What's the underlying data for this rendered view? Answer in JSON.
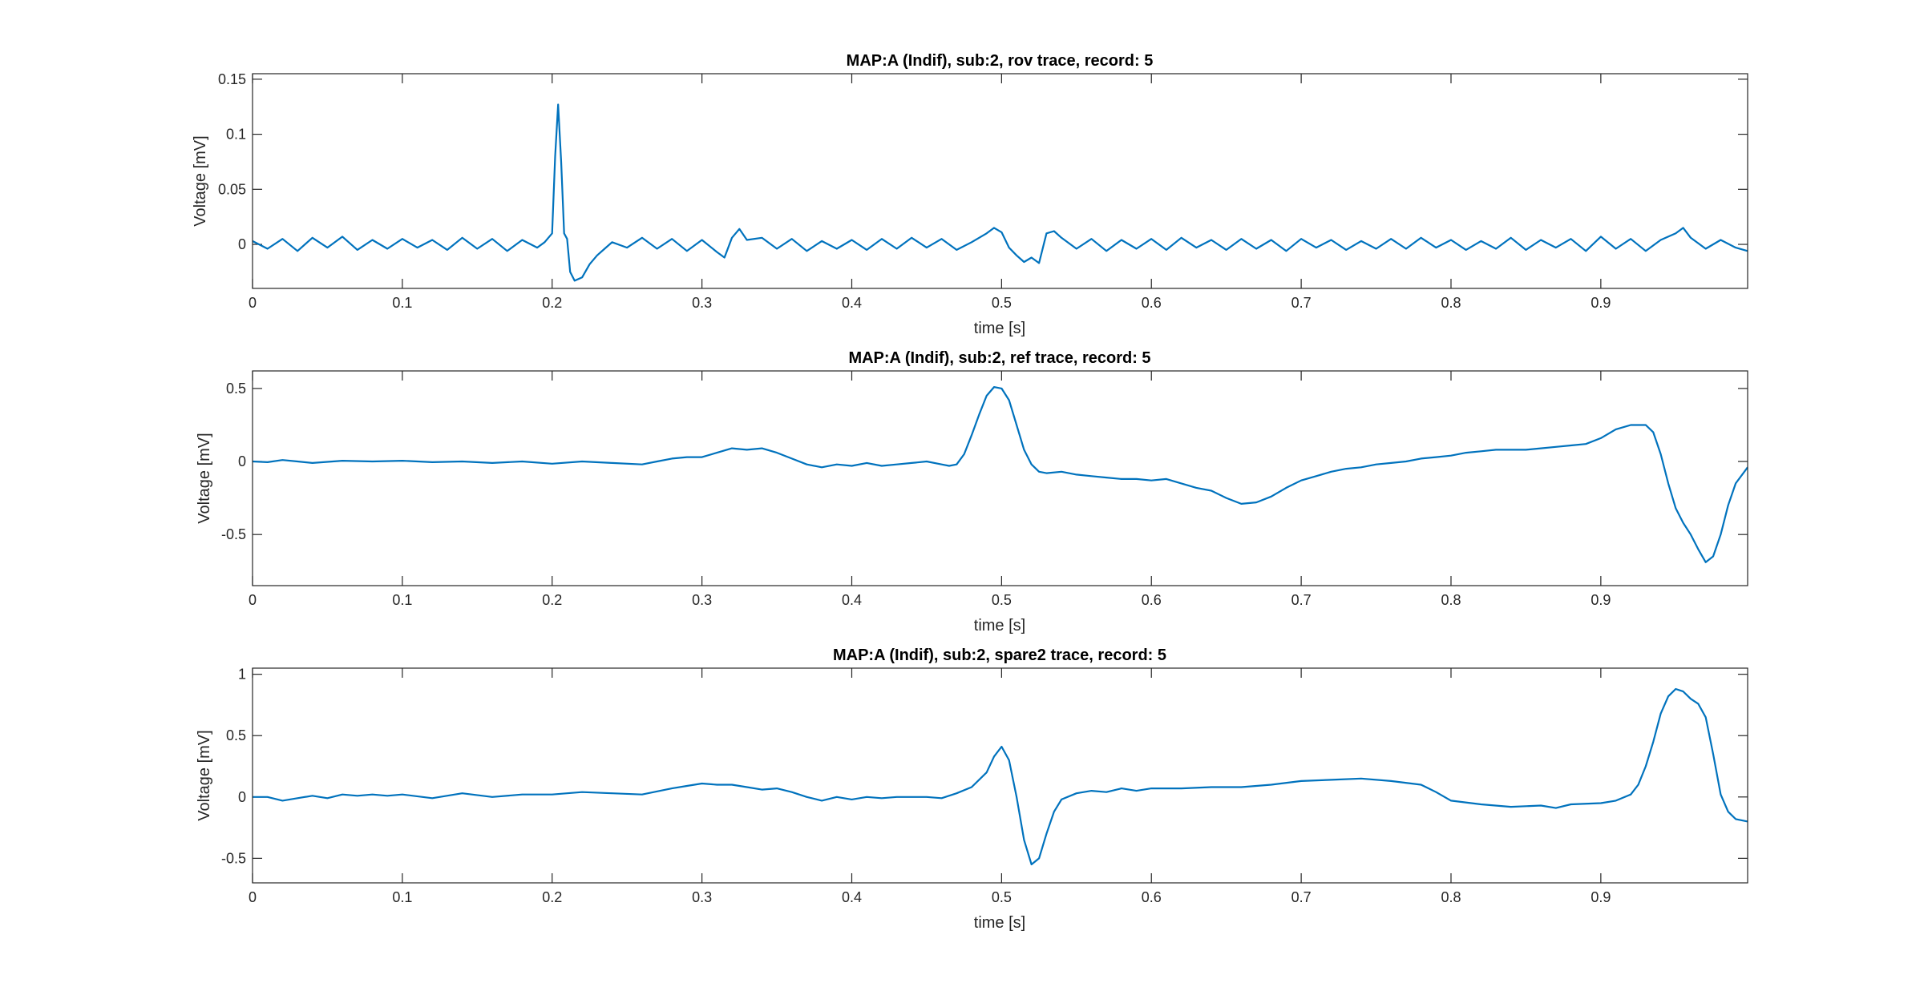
{
  "figure": {
    "background": "#ffffff",
    "axis_color": "#262626",
    "line_color": "#0072BD"
  },
  "chart_data": [
    {
      "type": "line",
      "title": "MAP:A (Indif), sub:2, rov trace, record: 5",
      "xlabel": "time [s]",
      "ylabel": "Voltage [mV]",
      "xlim": [
        0,
        0.998
      ],
      "ylim": [
        -0.04,
        0.155
      ],
      "xticks": [
        0,
        0.1,
        0.2,
        0.3,
        0.4,
        0.5,
        0.6,
        0.7,
        0.8,
        0.9
      ],
      "xtick_labels": [
        "0",
        "0.1",
        "0.2",
        "0.3",
        "0.4",
        "0.5",
        "0.6",
        "0.7",
        "0.8",
        "0.9"
      ],
      "yticks": [
        0,
        0.05,
        0.1,
        0.15
      ],
      "ytick_labels": [
        "0",
        "0.05",
        "0.1",
        "0.15"
      ],
      "grid": false,
      "series": [
        {
          "color": "#0072BD",
          "x": [
            0,
            0.01,
            0.02,
            0.03,
            0.04,
            0.05,
            0.06,
            0.07,
            0.08,
            0.09,
            0.1,
            0.11,
            0.12,
            0.13,
            0.14,
            0.15,
            0.16,
            0.17,
            0.18,
            0.19,
            0.195,
            0.2,
            0.202,
            0.204,
            0.206,
            0.208,
            0.21,
            0.212,
            0.215,
            0.22,
            0.225,
            0.23,
            0.235,
            0.24,
            0.25,
            0.26,
            0.27,
            0.28,
            0.29,
            0.3,
            0.31,
            0.315,
            0.32,
            0.325,
            0.33,
            0.34,
            0.35,
            0.36,
            0.37,
            0.38,
            0.39,
            0.4,
            0.41,
            0.42,
            0.43,
            0.44,
            0.45,
            0.46,
            0.47,
            0.48,
            0.49,
            0.495,
            0.5,
            0.505,
            0.51,
            0.515,
            0.52,
            0.525,
            0.53,
            0.535,
            0.54,
            0.55,
            0.56,
            0.57,
            0.58,
            0.59,
            0.6,
            0.61,
            0.62,
            0.63,
            0.64,
            0.65,
            0.66,
            0.67,
            0.68,
            0.69,
            0.7,
            0.71,
            0.72,
            0.73,
            0.74,
            0.75,
            0.76,
            0.77,
            0.78,
            0.79,
            0.8,
            0.81,
            0.82,
            0.83,
            0.84,
            0.85,
            0.86,
            0.87,
            0.88,
            0.89,
            0.9,
            0.91,
            0.92,
            0.93,
            0.94,
            0.95,
            0.955,
            0.96,
            0.97,
            0.98,
            0.99,
            0.998
          ],
          "y": [
            0.003,
            -0.004,
            0.005,
            -0.006,
            0.006,
            -0.003,
            0.007,
            -0.005,
            0.004,
            -0.004,
            0.005,
            -0.003,
            0.004,
            -0.005,
            0.006,
            -0.004,
            0.005,
            -0.006,
            0.004,
            -0.003,
            0.002,
            0.01,
            0.08,
            0.127,
            0.075,
            0.01,
            0.005,
            -0.025,
            -0.033,
            -0.03,
            -0.018,
            -0.01,
            -0.004,
            0.002,
            -0.003,
            0.006,
            -0.004,
            0.005,
            -0.006,
            0.004,
            -0.007,
            -0.012,
            0.006,
            0.014,
            0.004,
            0.006,
            -0.004,
            0.005,
            -0.006,
            0.003,
            -0.004,
            0.004,
            -0.005,
            0.005,
            -0.004,
            0.006,
            -0.003,
            0.005,
            -0.005,
            0.002,
            0.01,
            0.015,
            0.011,
            -0.003,
            -0.01,
            -0.016,
            -0.012,
            -0.017,
            0.01,
            0.012,
            0.006,
            -0.004,
            0.005,
            -0.006,
            0.004,
            -0.004,
            0.005,
            -0.005,
            0.006,
            -0.003,
            0.004,
            -0.005,
            0.005,
            -0.004,
            0.004,
            -0.006,
            0.005,
            -0.003,
            0.004,
            -0.005,
            0.003,
            -0.004,
            0.005,
            -0.004,
            0.006,
            -0.003,
            0.004,
            -0.005,
            0.003,
            -0.004,
            0.006,
            -0.005,
            0.004,
            -0.003,
            0.005,
            -0.006,
            0.007,
            -0.004,
            0.005,
            -0.006,
            0.004,
            0.01,
            0.015,
            0.006,
            -0.004,
            0.004,
            -0.003,
            -0.006
          ]
        }
      ]
    },
    {
      "type": "line",
      "title": "MAP:A (Indif), sub:2, ref trace, record: 5",
      "xlabel": "time [s]",
      "ylabel": "Voltage [mV]",
      "xlim": [
        0,
        0.998
      ],
      "ylim": [
        -0.85,
        0.62
      ],
      "xticks": [
        0,
        0.1,
        0.2,
        0.3,
        0.4,
        0.5,
        0.6,
        0.7,
        0.8,
        0.9
      ],
      "xtick_labels": [
        "0",
        "0.1",
        "0.2",
        "0.3",
        "0.4",
        "0.5",
        "0.6",
        "0.7",
        "0.8",
        "0.9"
      ],
      "yticks": [
        -0.5,
        0,
        0.5
      ],
      "ytick_labels": [
        "-0.5",
        "0",
        "0.5"
      ],
      "grid": false,
      "series": [
        {
          "color": "#0072BD",
          "x": [
            0,
            0.01,
            0.02,
            0.03,
            0.04,
            0.06,
            0.08,
            0.1,
            0.12,
            0.14,
            0.16,
            0.18,
            0.2,
            0.22,
            0.24,
            0.26,
            0.27,
            0.28,
            0.29,
            0.3,
            0.31,
            0.32,
            0.33,
            0.34,
            0.35,
            0.36,
            0.37,
            0.38,
            0.39,
            0.4,
            0.41,
            0.42,
            0.43,
            0.44,
            0.45,
            0.46,
            0.465,
            0.47,
            0.475,
            0.48,
            0.485,
            0.49,
            0.495,
            0.5,
            0.505,
            0.51,
            0.515,
            0.52,
            0.525,
            0.53,
            0.54,
            0.55,
            0.56,
            0.57,
            0.58,
            0.59,
            0.6,
            0.61,
            0.62,
            0.63,
            0.64,
            0.65,
            0.66,
            0.67,
            0.68,
            0.69,
            0.7,
            0.71,
            0.72,
            0.73,
            0.74,
            0.75,
            0.76,
            0.77,
            0.78,
            0.79,
            0.8,
            0.81,
            0.82,
            0.83,
            0.84,
            0.85,
            0.86,
            0.87,
            0.88,
            0.89,
            0.9,
            0.91,
            0.92,
            0.93,
            0.935,
            0.94,
            0.945,
            0.95,
            0.955,
            0.96,
            0.965,
            0.97,
            0.975,
            0.98,
            0.985,
            0.99,
            0.998
          ],
          "y": [
            0.0,
            -0.005,
            0.01,
            0.0,
            -0.01,
            0.005,
            0.0,
            0.005,
            -0.005,
            0.0,
            -0.01,
            0.0,
            -0.015,
            0.0,
            -0.01,
            -0.02,
            0.0,
            0.02,
            0.03,
            0.03,
            0.06,
            0.09,
            0.08,
            0.09,
            0.06,
            0.02,
            -0.02,
            -0.04,
            -0.02,
            -0.03,
            -0.01,
            -0.03,
            -0.02,
            -0.01,
            0.0,
            -0.02,
            -0.03,
            -0.02,
            0.05,
            0.18,
            0.32,
            0.45,
            0.51,
            0.5,
            0.42,
            0.25,
            0.08,
            -0.02,
            -0.07,
            -0.08,
            -0.07,
            -0.09,
            -0.1,
            -0.11,
            -0.12,
            -0.12,
            -0.13,
            -0.12,
            -0.15,
            -0.18,
            -0.2,
            -0.25,
            -0.29,
            -0.28,
            -0.24,
            -0.18,
            -0.13,
            -0.1,
            -0.07,
            -0.05,
            -0.04,
            -0.02,
            -0.01,
            0.0,
            0.02,
            0.03,
            0.04,
            0.06,
            0.07,
            0.08,
            0.08,
            0.08,
            0.09,
            0.1,
            0.11,
            0.12,
            0.16,
            0.22,
            0.25,
            0.25,
            0.2,
            0.05,
            -0.15,
            -0.32,
            -0.42,
            -0.5,
            -0.6,
            -0.69,
            -0.65,
            -0.5,
            -0.3,
            -0.15,
            -0.04
          ]
        }
      ]
    },
    {
      "type": "line",
      "title": "MAP:A (Indif), sub:2, spare2 trace, record: 5",
      "xlabel": "time [s]",
      "ylabel": "Voltage [mV]",
      "xlim": [
        0,
        0.998
      ],
      "ylim": [
        -0.7,
        1.05
      ],
      "xticks": [
        0,
        0.1,
        0.2,
        0.3,
        0.4,
        0.5,
        0.6,
        0.7,
        0.8,
        0.9
      ],
      "xtick_labels": [
        "0",
        "0.1",
        "0.2",
        "0.3",
        "0.4",
        "0.5",
        "0.6",
        "0.7",
        "0.8",
        "0.9"
      ],
      "yticks": [
        -0.5,
        0,
        0.5,
        1
      ],
      "ytick_labels": [
        "-0.5",
        "0",
        "0.5",
        "1"
      ],
      "grid": false,
      "series": [
        {
          "color": "#0072BD",
          "x": [
            0,
            0.01,
            0.02,
            0.03,
            0.04,
            0.05,
            0.06,
            0.07,
            0.08,
            0.09,
            0.1,
            0.12,
            0.14,
            0.16,
            0.18,
            0.2,
            0.22,
            0.24,
            0.26,
            0.28,
            0.29,
            0.3,
            0.31,
            0.32,
            0.33,
            0.34,
            0.35,
            0.36,
            0.37,
            0.38,
            0.39,
            0.4,
            0.41,
            0.42,
            0.43,
            0.44,
            0.45,
            0.46,
            0.47,
            0.48,
            0.49,
            0.495,
            0.5,
            0.505,
            0.51,
            0.515,
            0.52,
            0.525,
            0.53,
            0.535,
            0.54,
            0.55,
            0.56,
            0.57,
            0.58,
            0.59,
            0.6,
            0.62,
            0.64,
            0.66,
            0.68,
            0.7,
            0.72,
            0.74,
            0.76,
            0.78,
            0.79,
            0.8,
            0.82,
            0.84,
            0.86,
            0.87,
            0.88,
            0.9,
            0.91,
            0.92,
            0.925,
            0.93,
            0.935,
            0.94,
            0.945,
            0.95,
            0.955,
            0.96,
            0.965,
            0.97,
            0.975,
            0.98,
            0.985,
            0.99,
            0.998
          ],
          "y": [
            0.0,
            0.0,
            -0.03,
            -0.01,
            0.01,
            -0.01,
            0.02,
            0.01,
            0.02,
            0.01,
            0.02,
            -0.01,
            0.03,
            0.0,
            0.02,
            0.02,
            0.04,
            0.03,
            0.02,
            0.07,
            0.09,
            0.11,
            0.1,
            0.1,
            0.08,
            0.06,
            0.07,
            0.04,
            0.0,
            -0.03,
            0.0,
            -0.02,
            0.0,
            -0.01,
            0.0,
            0.0,
            0.0,
            -0.01,
            0.03,
            0.08,
            0.2,
            0.33,
            0.41,
            0.3,
            0.0,
            -0.35,
            -0.55,
            -0.5,
            -0.3,
            -0.12,
            -0.02,
            0.03,
            0.05,
            0.04,
            0.07,
            0.05,
            0.07,
            0.07,
            0.08,
            0.08,
            0.1,
            0.13,
            0.14,
            0.15,
            0.13,
            0.1,
            0.04,
            -0.03,
            -0.06,
            -0.08,
            -0.07,
            -0.09,
            -0.06,
            -0.05,
            -0.03,
            0.02,
            0.1,
            0.25,
            0.45,
            0.68,
            0.82,
            0.88,
            0.86,
            0.8,
            0.76,
            0.65,
            0.35,
            0.02,
            -0.12,
            -0.18,
            -0.2
          ]
        }
      ]
    }
  ]
}
